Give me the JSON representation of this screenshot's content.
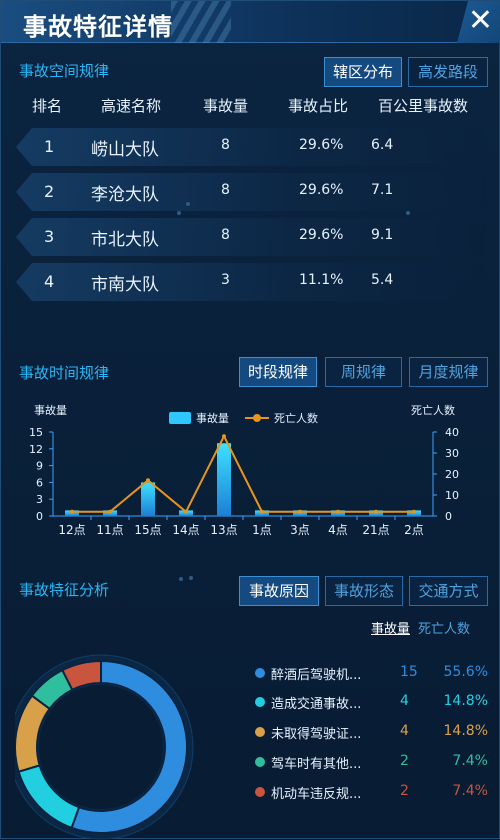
{
  "header": {
    "title": "事故特征详情",
    "close_label": "✕"
  },
  "spatial": {
    "title": "事故空间规律",
    "tabs": [
      {
        "label": "辖区分布",
        "active": true
      },
      {
        "label": "高发路段",
        "active": false
      }
    ],
    "columns": [
      "排名",
      "高速名称",
      "事故量",
      "事故占比",
      "百公里事故数"
    ],
    "rows": [
      {
        "rank": "1",
        "name": "崂山大队",
        "count": "8",
        "ratio": "29.6%",
        "per100km": "6.4"
      },
      {
        "rank": "2",
        "name": "李沧大队",
        "count": "8",
        "ratio": "29.6%",
        "per100km": "7.1"
      },
      {
        "rank": "3",
        "name": "市北大队",
        "count": "8",
        "ratio": "29.6%",
        "per100km": "9.1"
      },
      {
        "rank": "4",
        "name": "市南大队",
        "count": "3",
        "ratio": "11.1%",
        "per100km": "5.4"
      }
    ]
  },
  "temporal": {
    "title": "事故时间规律",
    "tabs": [
      {
        "label": "时段规律",
        "active": true
      },
      {
        "label": "周规律",
        "active": false
      },
      {
        "label": "月度规律",
        "active": false
      }
    ]
  },
  "chart_data": {
    "type": "bar",
    "categories": [
      "12点",
      "11点",
      "15点",
      "14点",
      "13点",
      "1点",
      "3点",
      "4点",
      "21点",
      "2点"
    ],
    "series": [
      {
        "name": "事故量",
        "type": "bar",
        "axis": "left",
        "values": [
          1,
          1,
          6,
          1,
          13,
          1,
          1,
          1,
          1,
          1
        ],
        "color": "#2ec7ff"
      },
      {
        "name": "死亡人数",
        "type": "line",
        "axis": "right",
        "values": [
          2,
          2,
          17,
          2,
          38,
          2,
          2,
          2,
          2,
          2
        ],
        "color": "#e8951c"
      }
    ],
    "ylabel": "事故量",
    "y2label": "死亡人数",
    "ylim": [
      0,
      15
    ],
    "y2lim": [
      0,
      40
    ],
    "yticks": [
      0,
      3,
      6,
      9,
      12,
      15
    ],
    "y2ticks": [
      0,
      10,
      20,
      30,
      40
    ],
    "legend_position": "top-center"
  },
  "features": {
    "title": "事故特征分析",
    "tabs": [
      {
        "label": "事故原因",
        "active": true
      },
      {
        "label": "事故形态",
        "active": false
      },
      {
        "label": "交通方式",
        "active": false
      }
    ],
    "metric_tabs": [
      {
        "label": "事故量",
        "active": true
      },
      {
        "label": "死亡人数",
        "active": false
      }
    ],
    "items": [
      {
        "name": "醉酒后驾驶机...",
        "count": "15",
        "pct": "55.6%",
        "color": "#2f8de0"
      },
      {
        "name": "造成交通事故...",
        "count": "4",
        "pct": "14.8%",
        "color": "#22cfe0"
      },
      {
        "name": "未取得驾驶证...",
        "count": "4",
        "pct": "14.8%",
        "color": "#d9a04a"
      },
      {
        "name": "驾车时有其他...",
        "count": "2",
        "pct": "7.4%",
        "color": "#2fbf9f"
      },
      {
        "name": "机动车违反规...",
        "count": "2",
        "pct": "7.4%",
        "color": "#c9553f"
      }
    ]
  }
}
